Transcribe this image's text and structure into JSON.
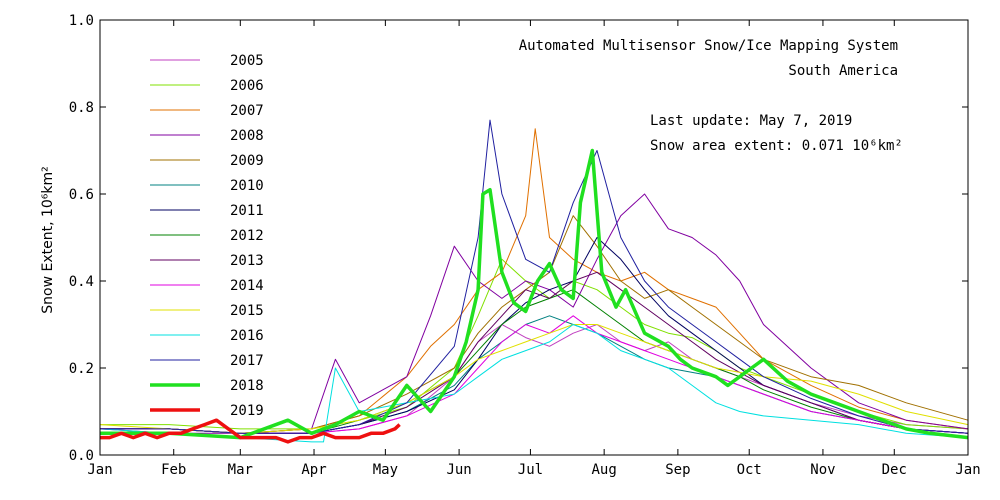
{
  "chart_data": {
    "type": "line",
    "title": "Automated  Multisensor Snow/Ice Mapping System",
    "subtitle": "South America",
    "ylabel": "Snow Extent, 10⁶km²",
    "xlabel": "",
    "ylim": [
      0.0,
      1.0
    ],
    "yticks": [
      "0.0",
      "0.2",
      "0.4",
      "0.6",
      "0.8",
      "1.0"
    ],
    "xlim": [
      1,
      366
    ],
    "xticks": [
      {
        "day": 1,
        "label": "Jan"
      },
      {
        "day": 32,
        "label": "Feb"
      },
      {
        "day": 60,
        "label": "Mar"
      },
      {
        "day": 91,
        "label": "Apr"
      },
      {
        "day": 121,
        "label": "May"
      },
      {
        "day": 152,
        "label": "Jun"
      },
      {
        "day": 182,
        "label": "Jul"
      },
      {
        "day": 213,
        "label": "Aug"
      },
      {
        "day": 244,
        "label": "Sep"
      },
      {
        "day": 274,
        "label": "Oct"
      },
      {
        "day": 305,
        "label": "Nov"
      },
      {
        "day": 335,
        "label": "Dec"
      },
      {
        "day": 366,
        "label": "Jan"
      }
    ],
    "grid": false,
    "legend_position": "top-left",
    "annotations": {
      "update": "Last update: May  7, 2019",
      "extent": "Snow area extent:  0.071 10⁶km²"
    },
    "series": [
      {
        "name": "2005",
        "color": "#c040c0",
        "x": [
          1,
          30,
          60,
          90,
          110,
          130,
          150,
          160,
          170,
          180,
          190,
          200,
          210,
          220,
          230,
          240,
          250,
          260,
          270,
          280,
          300,
          320,
          340,
          366
        ],
        "y": [
          0.06,
          0.06,
          0.05,
          0.05,
          0.06,
          0.09,
          0.18,
          0.26,
          0.3,
          0.27,
          0.25,
          0.28,
          0.3,
          0.26,
          0.24,
          0.26,
          0.22,
          0.2,
          0.18,
          0.16,
          0.12,
          0.09,
          0.07,
          0.06
        ]
      },
      {
        "name": "2006",
        "color": "#80e000",
        "x": [
          1,
          30,
          60,
          90,
          110,
          130,
          150,
          160,
          170,
          180,
          190,
          200,
          210,
          220,
          230,
          240,
          250,
          260,
          270,
          280,
          300,
          320,
          340,
          366
        ],
        "y": [
          0.07,
          0.07,
          0.06,
          0.06,
          0.08,
          0.11,
          0.2,
          0.32,
          0.45,
          0.4,
          0.36,
          0.4,
          0.38,
          0.34,
          0.3,
          0.28,
          0.27,
          0.24,
          0.2,
          0.18,
          0.14,
          0.1,
          0.07,
          0.06
        ]
      },
      {
        "name": "2007",
        "color": "#e07000",
        "x": [
          1,
          30,
          60,
          90,
          110,
          130,
          140,
          150,
          160,
          170,
          180,
          184,
          190,
          200,
          210,
          220,
          230,
          240,
          250,
          260,
          270,
          280,
          300,
          320,
          340,
          366
        ],
        "y": [
          0.06,
          0.06,
          0.05,
          0.06,
          0.09,
          0.18,
          0.25,
          0.3,
          0.38,
          0.42,
          0.55,
          0.75,
          0.5,
          0.45,
          0.42,
          0.4,
          0.42,
          0.38,
          0.36,
          0.34,
          0.28,
          0.22,
          0.16,
          0.11,
          0.08,
          0.06
        ]
      },
      {
        "name": "2008",
        "color": "#8000a0",
        "x": [
          1,
          30,
          60,
          90,
          100,
          110,
          130,
          140,
          150,
          160,
          170,
          180,
          190,
          200,
          210,
          220,
          230,
          240,
          250,
          260,
          270,
          280,
          300,
          320,
          340,
          366
        ],
        "y": [
          0.06,
          0.05,
          0.05,
          0.06,
          0.22,
          0.12,
          0.18,
          0.32,
          0.48,
          0.4,
          0.36,
          0.4,
          0.38,
          0.34,
          0.45,
          0.55,
          0.6,
          0.52,
          0.5,
          0.46,
          0.4,
          0.3,
          0.2,
          0.12,
          0.08,
          0.06
        ]
      },
      {
        "name": "2009",
        "color": "#a07000",
        "x": [
          1,
          30,
          60,
          90,
          110,
          130,
          150,
          160,
          170,
          180,
          190,
          200,
          210,
          220,
          230,
          240,
          250,
          260,
          270,
          280,
          300,
          320,
          340,
          366
        ],
        "y": [
          0.06,
          0.06,
          0.05,
          0.06,
          0.09,
          0.14,
          0.2,
          0.28,
          0.34,
          0.38,
          0.42,
          0.55,
          0.48,
          0.4,
          0.36,
          0.38,
          0.34,
          0.3,
          0.26,
          0.22,
          0.18,
          0.16,
          0.12,
          0.08
        ]
      },
      {
        "name": "2010",
        "color": "#008080",
        "x": [
          1,
          30,
          60,
          90,
          110,
          130,
          150,
          160,
          170,
          180,
          190,
          200,
          210,
          220,
          230,
          240,
          250,
          260,
          270,
          280,
          300,
          320,
          340,
          366
        ],
        "y": [
          0.06,
          0.06,
          0.05,
          0.05,
          0.07,
          0.1,
          0.16,
          0.22,
          0.26,
          0.3,
          0.32,
          0.3,
          0.28,
          0.25,
          0.22,
          0.2,
          0.19,
          0.18,
          0.16,
          0.14,
          0.1,
          0.08,
          0.06,
          0.05
        ]
      },
      {
        "name": "2011",
        "color": "#000060",
        "x": [
          1,
          30,
          60,
          90,
          110,
          130,
          150,
          160,
          170,
          180,
          190,
          200,
          210,
          220,
          230,
          240,
          250,
          260,
          270,
          280,
          300,
          320,
          340,
          366
        ],
        "y": [
          0.06,
          0.06,
          0.05,
          0.05,
          0.07,
          0.1,
          0.15,
          0.22,
          0.3,
          0.35,
          0.38,
          0.4,
          0.5,
          0.45,
          0.38,
          0.32,
          0.28,
          0.24,
          0.2,
          0.16,
          0.12,
          0.08,
          0.06,
          0.05
        ]
      },
      {
        "name": "2012",
        "color": "#008000",
        "x": [
          1,
          30,
          60,
          90,
          110,
          130,
          150,
          160,
          170,
          180,
          190,
          200,
          210,
          220,
          230,
          240,
          250,
          260,
          270,
          280,
          300,
          320,
          340,
          366
        ],
        "y": [
          0.06,
          0.06,
          0.05,
          0.05,
          0.08,
          0.12,
          0.18,
          0.24,
          0.3,
          0.34,
          0.36,
          0.38,
          0.34,
          0.3,
          0.26,
          0.24,
          0.22,
          0.2,
          0.18,
          0.15,
          0.11,
          0.08,
          0.06,
          0.05
        ]
      },
      {
        "name": "2013",
        "color": "#600060",
        "x": [
          1,
          30,
          60,
          90,
          110,
          130,
          150,
          160,
          170,
          180,
          190,
          200,
          210,
          220,
          230,
          240,
          250,
          260,
          270,
          280,
          300,
          320,
          340,
          366
        ],
        "y": [
          0.06,
          0.06,
          0.05,
          0.05,
          0.07,
          0.11,
          0.18,
          0.26,
          0.32,
          0.38,
          0.36,
          0.4,
          0.42,
          0.38,
          0.34,
          0.3,
          0.26,
          0.22,
          0.19,
          0.16,
          0.12,
          0.08,
          0.06,
          0.05
        ]
      },
      {
        "name": "2014",
        "color": "#e000e0",
        "x": [
          1,
          30,
          60,
          90,
          110,
          130,
          150,
          160,
          170,
          180,
          190,
          200,
          210,
          220,
          230,
          240,
          250,
          260,
          270,
          280,
          300,
          320,
          340,
          366
        ],
        "y": [
          0.06,
          0.06,
          0.05,
          0.05,
          0.06,
          0.09,
          0.14,
          0.2,
          0.26,
          0.3,
          0.28,
          0.32,
          0.28,
          0.26,
          0.24,
          0.22,
          0.2,
          0.18,
          0.16,
          0.14,
          0.1,
          0.08,
          0.06,
          0.05
        ]
      },
      {
        "name": "2015",
        "color": "#e0e000",
        "x": [
          1,
          30,
          60,
          90,
          110,
          130,
          150,
          160,
          170,
          180,
          190,
          200,
          210,
          220,
          230,
          240,
          250,
          260,
          270,
          280,
          300,
          320,
          340,
          366
        ],
        "y": [
          0.07,
          0.06,
          0.05,
          0.06,
          0.08,
          0.12,
          0.18,
          0.22,
          0.24,
          0.26,
          0.28,
          0.3,
          0.3,
          0.28,
          0.26,
          0.24,
          0.22,
          0.2,
          0.19,
          0.18,
          0.17,
          0.14,
          0.1,
          0.07
        ]
      },
      {
        "name": "2016",
        "color": "#00e0e0",
        "x": [
          1,
          30,
          60,
          90,
          95,
          100,
          110,
          130,
          150,
          160,
          170,
          180,
          190,
          200,
          210,
          220,
          230,
          240,
          250,
          260,
          270,
          280,
          300,
          320,
          340,
          366
        ],
        "y": [
          0.06,
          0.05,
          0.04,
          0.03,
          0.03,
          0.2,
          0.1,
          0.12,
          0.14,
          0.18,
          0.22,
          0.24,
          0.26,
          0.3,
          0.28,
          0.24,
          0.22,
          0.2,
          0.16,
          0.12,
          0.1,
          0.09,
          0.08,
          0.07,
          0.05,
          0.04
        ]
      },
      {
        "name": "2017",
        "color": "#2020a0",
        "x": [
          1,
          30,
          60,
          90,
          110,
          130,
          150,
          160,
          165,
          170,
          180,
          190,
          200,
          210,
          220,
          230,
          240,
          250,
          260,
          270,
          280,
          300,
          320,
          340,
          366
        ],
        "y": [
          0.06,
          0.06,
          0.05,
          0.05,
          0.07,
          0.12,
          0.25,
          0.5,
          0.77,
          0.6,
          0.45,
          0.42,
          0.58,
          0.7,
          0.5,
          0.4,
          0.34,
          0.3,
          0.26,
          0.22,
          0.18,
          0.13,
          0.09,
          0.06,
          0.05
        ]
      },
      {
        "name": "2018",
        "color": "#20e020",
        "x": [
          1,
          30,
          60,
          80,
          90,
          100,
          110,
          120,
          130,
          140,
          150,
          155,
          160,
          162,
          165,
          170,
          175,
          180,
          185,
          190,
          195,
          200,
          203,
          208,
          212,
          218,
          222,
          230,
          240,
          245,
          250,
          260,
          265,
          270,
          275,
          280,
          290,
          300,
          310,
          320,
          330,
          340,
          350,
          366
        ],
        "y": [
          0.05,
          0.05,
          0.04,
          0.08,
          0.05,
          0.07,
          0.1,
          0.08,
          0.16,
          0.1,
          0.18,
          0.26,
          0.38,
          0.6,
          0.61,
          0.42,
          0.35,
          0.33,
          0.4,
          0.44,
          0.38,
          0.36,
          0.58,
          0.7,
          0.42,
          0.34,
          0.38,
          0.28,
          0.25,
          0.22,
          0.2,
          0.18,
          0.16,
          0.18,
          0.2,
          0.22,
          0.17,
          0.14,
          0.12,
          0.1,
          0.08,
          0.06,
          0.05,
          0.04
        ]
      },
      {
        "name": "2019",
        "color": "#ee1010",
        "x": [
          1,
          5,
          10,
          15,
          20,
          25,
          30,
          35,
          40,
          45,
          50,
          55,
          60,
          65,
          70,
          75,
          80,
          85,
          90,
          95,
          100,
          105,
          110,
          115,
          120,
          125,
          127
        ],
        "y": [
          0.04,
          0.04,
          0.05,
          0.04,
          0.05,
          0.04,
          0.05,
          0.05,
          0.06,
          0.07,
          0.08,
          0.06,
          0.04,
          0.04,
          0.04,
          0.04,
          0.03,
          0.04,
          0.04,
          0.05,
          0.04,
          0.04,
          0.04,
          0.05,
          0.05,
          0.06,
          0.07
        ]
      }
    ]
  }
}
